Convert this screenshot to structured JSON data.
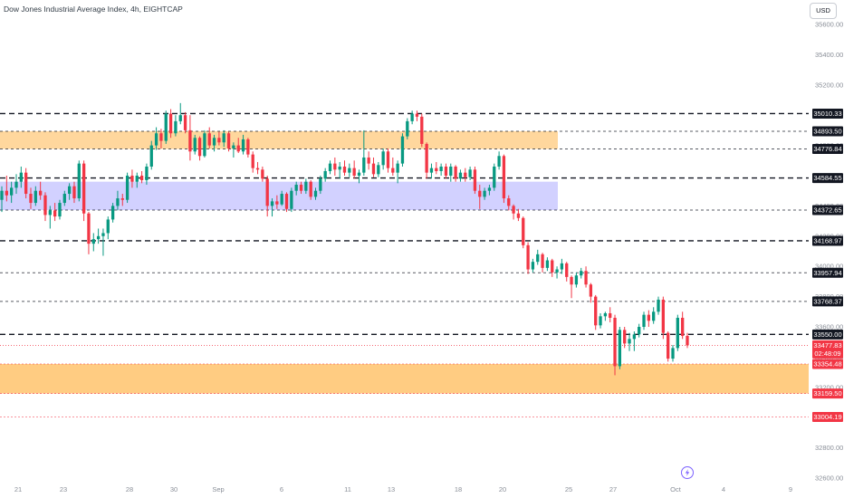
{
  "header": {
    "title": "Dow Jones Industrial Average Index, 4h, EIGHTCAP"
  },
  "currency": {
    "label": "USD"
  },
  "colors": {
    "up": "#089981",
    "down": "#f23645",
    "supply_zone": "#ffb74d",
    "demand_zone": "#9c99ff",
    "level_line": "#131722",
    "label_bg": "#131722",
    "label_text": "#ffffff",
    "current_price": "#f23645",
    "axis_text": "#8a8f98"
  },
  "chart_data": {
    "type": "candlestick",
    "title": "Dow Jones Industrial Average Index, 4h, EIGHTCAP",
    "ylim": [
      32600,
      35700
    ],
    "y_ticks": [
      35600,
      35400,
      35200,
      35000,
      34800,
      34600,
      34400,
      34200,
      34000,
      33800,
      33600,
      33400,
      33200,
      33000,
      32800,
      32600
    ],
    "x_ticks": [
      "21",
      "23",
      "28",
      "30",
      "Sep",
      "6",
      "11",
      "13",
      "18",
      "20",
      "25",
      "27",
      "Oct",
      "4",
      "9"
    ],
    "level_lines": [
      {
        "value": 35010.33,
        "label": "35010.33",
        "style": "bold"
      },
      {
        "value": 34893.5,
        "label": "34893.50",
        "style": "thin"
      },
      {
        "value": 34776.84,
        "label": "34776.84",
        "style": "thin"
      },
      {
        "value": 34584.55,
        "label": "34584.55",
        "style": "bold"
      },
      {
        "value": 34372.65,
        "label": "34372.65",
        "style": "thin"
      },
      {
        "value": 34168.97,
        "label": "34168.97",
        "style": "bold"
      },
      {
        "value": 33957.94,
        "label": "33957.94",
        "style": "thin"
      },
      {
        "value": 33768.37,
        "label": "33768.37",
        "style": "thin"
      },
      {
        "value": 33550.0,
        "label": "33550.00",
        "style": "bold"
      },
      {
        "value": 33354.48,
        "label": "33354.48",
        "style": "red"
      },
      {
        "value": 33159.5,
        "label": "33159.50",
        "style": "red"
      },
      {
        "value": 33004.19,
        "label": "33004.19",
        "style": "red"
      }
    ],
    "current_price": {
      "value": 33477.83,
      "label": "33477.83",
      "countdown": "02:48:09"
    },
    "zones": [
      {
        "name": "supply-zone-upper",
        "from": 34776.84,
        "to": 34893.5,
        "color": "#ffb74d"
      },
      {
        "name": "demand-zone",
        "from": 34372.65,
        "to": 34560,
        "color": "#9c99ff"
      },
      {
        "name": "supply-zone-lower",
        "from": 33159.5,
        "to": 33354.48,
        "color": "#ffb74d"
      }
    ],
    "candles": [
      {
        "o": 34440,
        "h": 34530,
        "l": 34360,
        "c": 34500
      },
      {
        "o": 34500,
        "h": 34600,
        "l": 34430,
        "c": 34470
      },
      {
        "o": 34470,
        "h": 34560,
        "l": 34420,
        "c": 34520
      },
      {
        "o": 34520,
        "h": 34610,
        "l": 34480,
        "c": 34560
      },
      {
        "o": 34560,
        "h": 34660,
        "l": 34520,
        "c": 34620
      },
      {
        "o": 34620,
        "h": 34650,
        "l": 34450,
        "c": 34480
      },
      {
        "o": 34480,
        "h": 34520,
        "l": 34380,
        "c": 34420
      },
      {
        "o": 34420,
        "h": 34530,
        "l": 34400,
        "c": 34500
      },
      {
        "o": 34500,
        "h": 34560,
        "l": 34440,
        "c": 34470
      },
      {
        "o": 34470,
        "h": 34490,
        "l": 34300,
        "c": 34340
      },
      {
        "o": 34340,
        "h": 34400,
        "l": 34250,
        "c": 34370
      },
      {
        "o": 34370,
        "h": 34420,
        "l": 34300,
        "c": 34330
      },
      {
        "o": 34330,
        "h": 34440,
        "l": 34310,
        "c": 34420
      },
      {
        "o": 34420,
        "h": 34500,
        "l": 34400,
        "c": 34480
      },
      {
        "o": 34480,
        "h": 34550,
        "l": 34440,
        "c": 34530
      },
      {
        "o": 34530,
        "h": 34560,
        "l": 34420,
        "c": 34450
      },
      {
        "o": 34450,
        "h": 34700,
        "l": 34430,
        "c": 34680
      },
      {
        "o": 34680,
        "h": 34700,
        "l": 34300,
        "c": 34350
      },
      {
        "o": 34350,
        "h": 34360,
        "l": 34080,
        "c": 34150
      },
      {
        "o": 34150,
        "h": 34220,
        "l": 34100,
        "c": 34180
      },
      {
        "o": 34180,
        "h": 34250,
        "l": 34150,
        "c": 34200
      },
      {
        "o": 34200,
        "h": 34250,
        "l": 34070,
        "c": 34220
      },
      {
        "o": 34220,
        "h": 34330,
        "l": 34180,
        "c": 34310
      },
      {
        "o": 34310,
        "h": 34420,
        "l": 34290,
        "c": 34400
      },
      {
        "o": 34400,
        "h": 34500,
        "l": 34370,
        "c": 34450
      },
      {
        "o": 34450,
        "h": 34480,
        "l": 34400,
        "c": 34440
      },
      {
        "o": 34440,
        "h": 34620,
        "l": 34420,
        "c": 34600
      },
      {
        "o": 34600,
        "h": 34640,
        "l": 34520,
        "c": 34560
      },
      {
        "o": 34560,
        "h": 34620,
        "l": 34520,
        "c": 34600
      },
      {
        "o": 34600,
        "h": 34630,
        "l": 34550,
        "c": 34570
      },
      {
        "o": 34570,
        "h": 34680,
        "l": 34540,
        "c": 34660
      },
      {
        "o": 34660,
        "h": 34830,
        "l": 34640,
        "c": 34800
      },
      {
        "o": 34800,
        "h": 34920,
        "l": 34770,
        "c": 34880
      },
      {
        "o": 34880,
        "h": 34910,
        "l": 34780,
        "c": 34830
      },
      {
        "o": 34830,
        "h": 35030,
        "l": 34810,
        "c": 35010
      },
      {
        "o": 35010,
        "h": 35040,
        "l": 34850,
        "c": 34880
      },
      {
        "o": 34880,
        "h": 35000,
        "l": 34860,
        "c": 34960
      },
      {
        "o": 34960,
        "h": 35080,
        "l": 34940,
        "c": 35000
      },
      {
        "o": 35000,
        "h": 35020,
        "l": 34880,
        "c": 34900
      },
      {
        "o": 34900,
        "h": 35000,
        "l": 34700,
        "c": 34760
      },
      {
        "o": 34760,
        "h": 34870,
        "l": 34740,
        "c": 34850
      },
      {
        "o": 34850,
        "h": 34860,
        "l": 34700,
        "c": 34730
      },
      {
        "o": 34730,
        "h": 34900,
        "l": 34720,
        "c": 34880
      },
      {
        "o": 34880,
        "h": 34920,
        "l": 34780,
        "c": 34800
      },
      {
        "o": 34800,
        "h": 34870,
        "l": 34760,
        "c": 34850
      },
      {
        "o": 34850,
        "h": 34890,
        "l": 34800,
        "c": 34820
      },
      {
        "o": 34820,
        "h": 34900,
        "l": 34790,
        "c": 34880
      },
      {
        "o": 34880,
        "h": 34890,
        "l": 34760,
        "c": 34780
      },
      {
        "o": 34780,
        "h": 34820,
        "l": 34720,
        "c": 34800
      },
      {
        "o": 34800,
        "h": 34850,
        "l": 34750,
        "c": 34760
      },
      {
        "o": 34760,
        "h": 34870,
        "l": 34740,
        "c": 34840
      },
      {
        "o": 34840,
        "h": 34850,
        "l": 34720,
        "c": 34740
      },
      {
        "o": 34740,
        "h": 34760,
        "l": 34620,
        "c": 34650
      },
      {
        "o": 34650,
        "h": 34690,
        "l": 34610,
        "c": 34640
      },
      {
        "o": 34640,
        "h": 34660,
        "l": 34560,
        "c": 34580
      },
      {
        "o": 34580,
        "h": 34600,
        "l": 34330,
        "c": 34400
      },
      {
        "o": 34400,
        "h": 34450,
        "l": 34330,
        "c": 34430
      },
      {
        "o": 34430,
        "h": 34470,
        "l": 34380,
        "c": 34410
      },
      {
        "o": 34410,
        "h": 34500,
        "l": 34400,
        "c": 34480
      },
      {
        "o": 34480,
        "h": 34490,
        "l": 34360,
        "c": 34380
      },
      {
        "o": 34380,
        "h": 34520,
        "l": 34360,
        "c": 34500
      },
      {
        "o": 34500,
        "h": 34560,
        "l": 34470,
        "c": 34540
      },
      {
        "o": 34540,
        "h": 34560,
        "l": 34480,
        "c": 34500
      },
      {
        "o": 34500,
        "h": 34580,
        "l": 34480,
        "c": 34560
      },
      {
        "o": 34560,
        "h": 34570,
        "l": 34440,
        "c": 34460
      },
      {
        "o": 34460,
        "h": 34520,
        "l": 34440,
        "c": 34500
      },
      {
        "o": 34500,
        "h": 34600,
        "l": 34480,
        "c": 34580
      },
      {
        "o": 34580,
        "h": 34650,
        "l": 34560,
        "c": 34630
      },
      {
        "o": 34630,
        "h": 34700,
        "l": 34610,
        "c": 34680
      },
      {
        "o": 34680,
        "h": 34720,
        "l": 34600,
        "c": 34640
      },
      {
        "o": 34640,
        "h": 34690,
        "l": 34580,
        "c": 34660
      },
      {
        "o": 34660,
        "h": 34700,
        "l": 34600,
        "c": 34620
      },
      {
        "o": 34620,
        "h": 34680,
        "l": 34590,
        "c": 34650
      },
      {
        "o": 34650,
        "h": 34700,
        "l": 34580,
        "c": 34600
      },
      {
        "o": 34600,
        "h": 34640,
        "l": 34550,
        "c": 34620
      },
      {
        "o": 34620,
        "h": 34900,
        "l": 34600,
        "c": 34720
      },
      {
        "o": 34720,
        "h": 34760,
        "l": 34640,
        "c": 34680
      },
      {
        "o": 34680,
        "h": 34720,
        "l": 34590,
        "c": 34610
      },
      {
        "o": 34610,
        "h": 34690,
        "l": 34590,
        "c": 34670
      },
      {
        "o": 34670,
        "h": 34780,
        "l": 34640,
        "c": 34760
      },
      {
        "o": 34760,
        "h": 34780,
        "l": 34620,
        "c": 34650
      },
      {
        "o": 34650,
        "h": 34720,
        "l": 34600,
        "c": 34620
      },
      {
        "o": 34620,
        "h": 34700,
        "l": 34550,
        "c": 34680
      },
      {
        "o": 34680,
        "h": 34880,
        "l": 34660,
        "c": 34860
      },
      {
        "o": 34860,
        "h": 34980,
        "l": 34840,
        "c": 34960
      },
      {
        "o": 34960,
        "h": 35030,
        "l": 34940,
        "c": 35010
      },
      {
        "o": 35010,
        "h": 35030,
        "l": 34960,
        "c": 34990
      },
      {
        "o": 34990,
        "h": 35010,
        "l": 34790,
        "c": 34810
      },
      {
        "o": 34810,
        "h": 34820,
        "l": 34580,
        "c": 34620
      },
      {
        "o": 34620,
        "h": 34680,
        "l": 34580,
        "c": 34650
      },
      {
        "o": 34650,
        "h": 34690,
        "l": 34610,
        "c": 34630
      },
      {
        "o": 34630,
        "h": 34680,
        "l": 34600,
        "c": 34660
      },
      {
        "o": 34660,
        "h": 34680,
        "l": 34580,
        "c": 34600
      },
      {
        "o": 34600,
        "h": 34680,
        "l": 34560,
        "c": 34660
      },
      {
        "o": 34660,
        "h": 34670,
        "l": 34560,
        "c": 34580
      },
      {
        "o": 34580,
        "h": 34640,
        "l": 34560,
        "c": 34620
      },
      {
        "o": 34620,
        "h": 34650,
        "l": 34560,
        "c": 34590
      },
      {
        "o": 34590,
        "h": 34660,
        "l": 34570,
        "c": 34640
      },
      {
        "o": 34640,
        "h": 34660,
        "l": 34480,
        "c": 34500
      },
      {
        "o": 34500,
        "h": 34540,
        "l": 34380,
        "c": 34460
      },
      {
        "o": 34460,
        "h": 34520,
        "l": 34440,
        "c": 34500
      },
      {
        "o": 34500,
        "h": 34540,
        "l": 34470,
        "c": 34520
      },
      {
        "o": 34520,
        "h": 34680,
        "l": 34500,
        "c": 34660
      },
      {
        "o": 34660,
        "h": 34760,
        "l": 34640,
        "c": 34730
      },
      {
        "o": 34730,
        "h": 34740,
        "l": 34420,
        "c": 34450
      },
      {
        "o": 34450,
        "h": 34470,
        "l": 34370,
        "c": 34400
      },
      {
        "o": 34400,
        "h": 34410,
        "l": 34310,
        "c": 34350
      },
      {
        "o": 34350,
        "h": 34380,
        "l": 34300,
        "c": 34320
      },
      {
        "o": 34320,
        "h": 34330,
        "l": 34120,
        "c": 34140
      },
      {
        "o": 34140,
        "h": 34160,
        "l": 33950,
        "c": 33980
      },
      {
        "o": 33980,
        "h": 34050,
        "l": 33960,
        "c": 34030
      },
      {
        "o": 34030,
        "h": 34110,
        "l": 34010,
        "c": 34080
      },
      {
        "o": 34080,
        "h": 34090,
        "l": 33960,
        "c": 33990
      },
      {
        "o": 33990,
        "h": 34060,
        "l": 33970,
        "c": 34040
      },
      {
        "o": 34040,
        "h": 34050,
        "l": 33930,
        "c": 33960
      },
      {
        "o": 33960,
        "h": 34000,
        "l": 33920,
        "c": 33980
      },
      {
        "o": 33980,
        "h": 34050,
        "l": 33950,
        "c": 34020
      },
      {
        "o": 34020,
        "h": 34030,
        "l": 33900,
        "c": 33930
      },
      {
        "o": 33930,
        "h": 33940,
        "l": 33790,
        "c": 33880
      },
      {
        "o": 33880,
        "h": 33960,
        "l": 33860,
        "c": 33940
      },
      {
        "o": 33940,
        "h": 33990,
        "l": 33920,
        "c": 33970
      },
      {
        "o": 33970,
        "h": 34000,
        "l": 33860,
        "c": 33880
      },
      {
        "o": 33880,
        "h": 33890,
        "l": 33760,
        "c": 33800
      },
      {
        "o": 33800,
        "h": 33810,
        "l": 33580,
        "c": 33610
      },
      {
        "o": 33610,
        "h": 33690,
        "l": 33590,
        "c": 33670
      },
      {
        "o": 33670,
        "h": 33700,
        "l": 33640,
        "c": 33690
      },
      {
        "o": 33690,
        "h": 33730,
        "l": 33630,
        "c": 33660
      },
      {
        "o": 33660,
        "h": 33680,
        "l": 33280,
        "c": 33340
      },
      {
        "o": 33340,
        "h": 33600,
        "l": 33320,
        "c": 33580
      },
      {
        "o": 33580,
        "h": 33600,
        "l": 33460,
        "c": 33490
      },
      {
        "o": 33490,
        "h": 33560,
        "l": 33440,
        "c": 33520
      },
      {
        "o": 33520,
        "h": 33570,
        "l": 33440,
        "c": 33550
      },
      {
        "o": 33550,
        "h": 33620,
        "l": 33530,
        "c": 33600
      },
      {
        "o": 33600,
        "h": 33700,
        "l": 33580,
        "c": 33680
      },
      {
        "o": 33680,
        "h": 33710,
        "l": 33600,
        "c": 33640
      },
      {
        "o": 33640,
        "h": 33730,
        "l": 33620,
        "c": 33700
      },
      {
        "o": 33700,
        "h": 33800,
        "l": 33680,
        "c": 33780
      },
      {
        "o": 33780,
        "h": 33800,
        "l": 33520,
        "c": 33560
      },
      {
        "o": 33560,
        "h": 33570,
        "l": 33370,
        "c": 33390
      },
      {
        "o": 33390,
        "h": 33480,
        "l": 33370,
        "c": 33460
      },
      {
        "o": 33460,
        "h": 33680,
        "l": 33440,
        "c": 33660
      },
      {
        "o": 33660,
        "h": 33700,
        "l": 33520,
        "c": 33540
      },
      {
        "o": 33540,
        "h": 33560,
        "l": 33460,
        "c": 33478
      }
    ]
  }
}
